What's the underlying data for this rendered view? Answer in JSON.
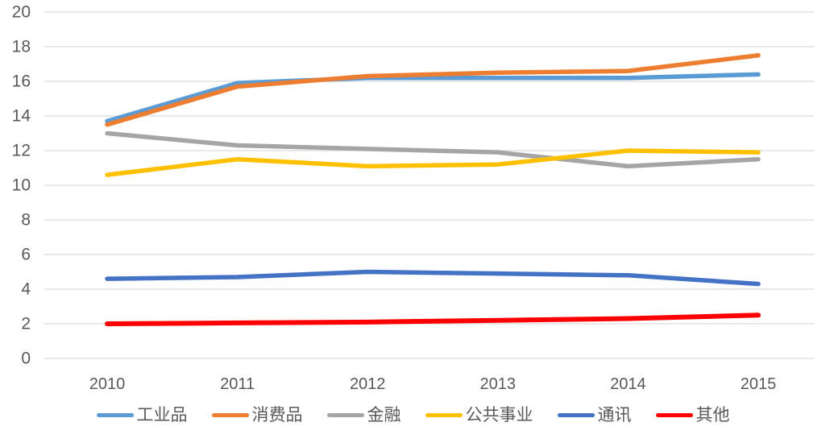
{
  "chart_data": {
    "type": "line",
    "title": "",
    "xlabel": "",
    "ylabel": "",
    "categories": [
      "2010",
      "2011",
      "2012",
      "2013",
      "2014",
      "2015"
    ],
    "series": [
      {
        "name": "工业品",
        "color": "#5B9BD5",
        "values": [
          13.7,
          15.9,
          16.2,
          16.2,
          16.2,
          16.4
        ]
      },
      {
        "name": "消费品",
        "color": "#ED7D31",
        "values": [
          13.5,
          15.7,
          16.3,
          16.5,
          16.6,
          17.5
        ]
      },
      {
        "name": "金融",
        "color": "#A5A5A5",
        "values": [
          13.0,
          12.3,
          12.1,
          11.9,
          11.1,
          11.5
        ]
      },
      {
        "name": "公共事业",
        "color": "#FFC000",
        "values": [
          10.6,
          11.5,
          11.1,
          11.2,
          12.0,
          11.9
        ]
      },
      {
        "name": "通讯",
        "color": "#4472C4",
        "values": [
          4.6,
          4.7,
          5.0,
          4.9,
          4.8,
          4.3
        ]
      },
      {
        "name": "其他",
        "color": "#FF0000",
        "values": [
          2.0,
          2.05,
          2.1,
          2.2,
          2.3,
          2.5
        ]
      }
    ],
    "ylim": [
      0,
      20
    ],
    "y_ticks": [
      "0",
      "2",
      "4",
      "6",
      "8",
      "10",
      "12",
      "14",
      "16",
      "18",
      "20"
    ],
    "grid": true,
    "legend_position": "bottom",
    "colors": {
      "axis_text": "#595959",
      "gridline": "#D9D9D9",
      "background": "#FFFFFF"
    }
  }
}
